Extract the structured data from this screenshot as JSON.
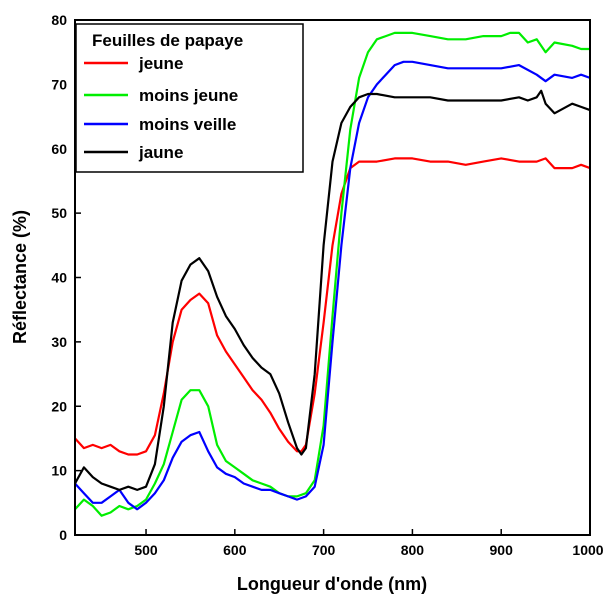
{
  "chart_data": {
    "type": "line",
    "xlabel": "Longueur d'onde (nm)",
    "ylabel": "Réflectance (%)",
    "xlim": [
      420,
      1000
    ],
    "ylim": [
      0,
      80
    ],
    "xticks": [
      500,
      600,
      700,
      800,
      900,
      1000
    ],
    "yticks": [
      0,
      10,
      20,
      30,
      40,
      50,
      60,
      70,
      80
    ],
    "grid": false,
    "legend": {
      "title": "Feuilles de papaye",
      "placement": "top-left"
    },
    "series": [
      {
        "name": "jeune",
        "color": "#ff0000",
        "x": [
          420,
          430,
          440,
          450,
          460,
          470,
          480,
          490,
          500,
          510,
          520,
          530,
          540,
          550,
          560,
          570,
          580,
          590,
          600,
          610,
          620,
          630,
          640,
          650,
          660,
          670,
          675,
          680,
          690,
          700,
          710,
          720,
          730,
          740,
          750,
          760,
          780,
          800,
          820,
          840,
          860,
          880,
          900,
          920,
          940,
          950,
          960,
          980,
          990,
          1000
        ],
        "y": [
          15,
          13.5,
          14,
          13.5,
          14,
          13,
          12.5,
          12.5,
          13,
          15.5,
          22,
          30,
          35,
          36.5,
          37.5,
          36,
          31,
          28.5,
          26.5,
          24.5,
          22.5,
          21,
          19,
          16.5,
          14.5,
          13,
          13,
          14,
          22,
          33,
          45,
          53,
          57,
          58,
          58,
          58,
          58.5,
          58.5,
          58,
          58,
          57.5,
          58,
          58.5,
          58,
          58,
          58.5,
          57,
          57,
          57.5,
          57
        ]
      },
      {
        "name": "moins jeune",
        "color": "#00ee00",
        "x": [
          420,
          430,
          440,
          450,
          460,
          470,
          480,
          490,
          500,
          510,
          520,
          530,
          540,
          550,
          560,
          570,
          580,
          590,
          600,
          610,
          620,
          630,
          640,
          650,
          660,
          670,
          680,
          690,
          700,
          710,
          720,
          730,
          740,
          750,
          760,
          770,
          780,
          800,
          820,
          840,
          860,
          880,
          900,
          910,
          920,
          930,
          940,
          950,
          960,
          980,
          990,
          1000
        ],
        "y": [
          4,
          5.5,
          4.5,
          3,
          3.5,
          4.5,
          4,
          4.5,
          5.5,
          8,
          11,
          16,
          21,
          22.5,
          22.5,
          20,
          14,
          11.5,
          10.5,
          9.5,
          8.5,
          8,
          7.5,
          6.5,
          6,
          6,
          6.5,
          8.5,
          17,
          34,
          50,
          63,
          71,
          75,
          77,
          77.5,
          78,
          78,
          77.5,
          77,
          77,
          77.5,
          77.5,
          78,
          78,
          76.5,
          77,
          75,
          76.5,
          76,
          75.5,
          75.5
        ]
      },
      {
        "name": "moins veille",
        "color": "#0000ff",
        "x": [
          420,
          430,
          440,
          450,
          460,
          470,
          480,
          490,
          500,
          510,
          520,
          530,
          540,
          550,
          560,
          570,
          580,
          590,
          600,
          610,
          620,
          630,
          640,
          650,
          660,
          670,
          680,
          690,
          700,
          710,
          720,
          730,
          740,
          750,
          760,
          770,
          780,
          790,
          800,
          820,
          840,
          860,
          880,
          900,
          920,
          940,
          950,
          960,
          980,
          990,
          1000
        ],
        "y": [
          8,
          6.5,
          5,
          5,
          6,
          7,
          5,
          4,
          5,
          6.5,
          8.5,
          12,
          14.5,
          15.5,
          16,
          13,
          10.5,
          9.5,
          9,
          8,
          7.5,
          7,
          7,
          6.5,
          6,
          5.5,
          6,
          7.5,
          14,
          30,
          45,
          57,
          64,
          68,
          70,
          71.5,
          73,
          73.5,
          73.5,
          73,
          72.5,
          72.5,
          72.5,
          72.5,
          73,
          71.5,
          70.5,
          71.5,
          71,
          71.5,
          71
        ]
      },
      {
        "name": "jaune",
        "color": "#000000",
        "x": [
          420,
          430,
          440,
          450,
          460,
          470,
          480,
          490,
          500,
          510,
          520,
          530,
          540,
          550,
          560,
          570,
          580,
          590,
          600,
          610,
          620,
          630,
          640,
          650,
          660,
          670,
          675,
          680,
          690,
          700,
          710,
          720,
          730,
          740,
          750,
          760,
          780,
          800,
          820,
          840,
          860,
          880,
          900,
          920,
          930,
          940,
          945,
          950,
          960,
          980,
          990,
          1000
        ],
        "y": [
          8,
          10.5,
          9,
          8,
          7.5,
          7,
          7.5,
          7,
          7.5,
          11,
          20,
          33,
          39.5,
          42,
          43,
          41,
          37,
          34,
          32,
          29.5,
          27.5,
          26,
          25,
          22,
          17.5,
          13.5,
          12.5,
          13.5,
          25,
          45,
          58,
          64,
          66.5,
          68,
          68.5,
          68.5,
          68,
          68,
          68,
          67.5,
          67.5,
          67.5,
          67.5,
          68,
          67.5,
          68,
          69,
          67,
          65.5,
          67,
          66.5,
          66
        ]
      }
    ]
  }
}
